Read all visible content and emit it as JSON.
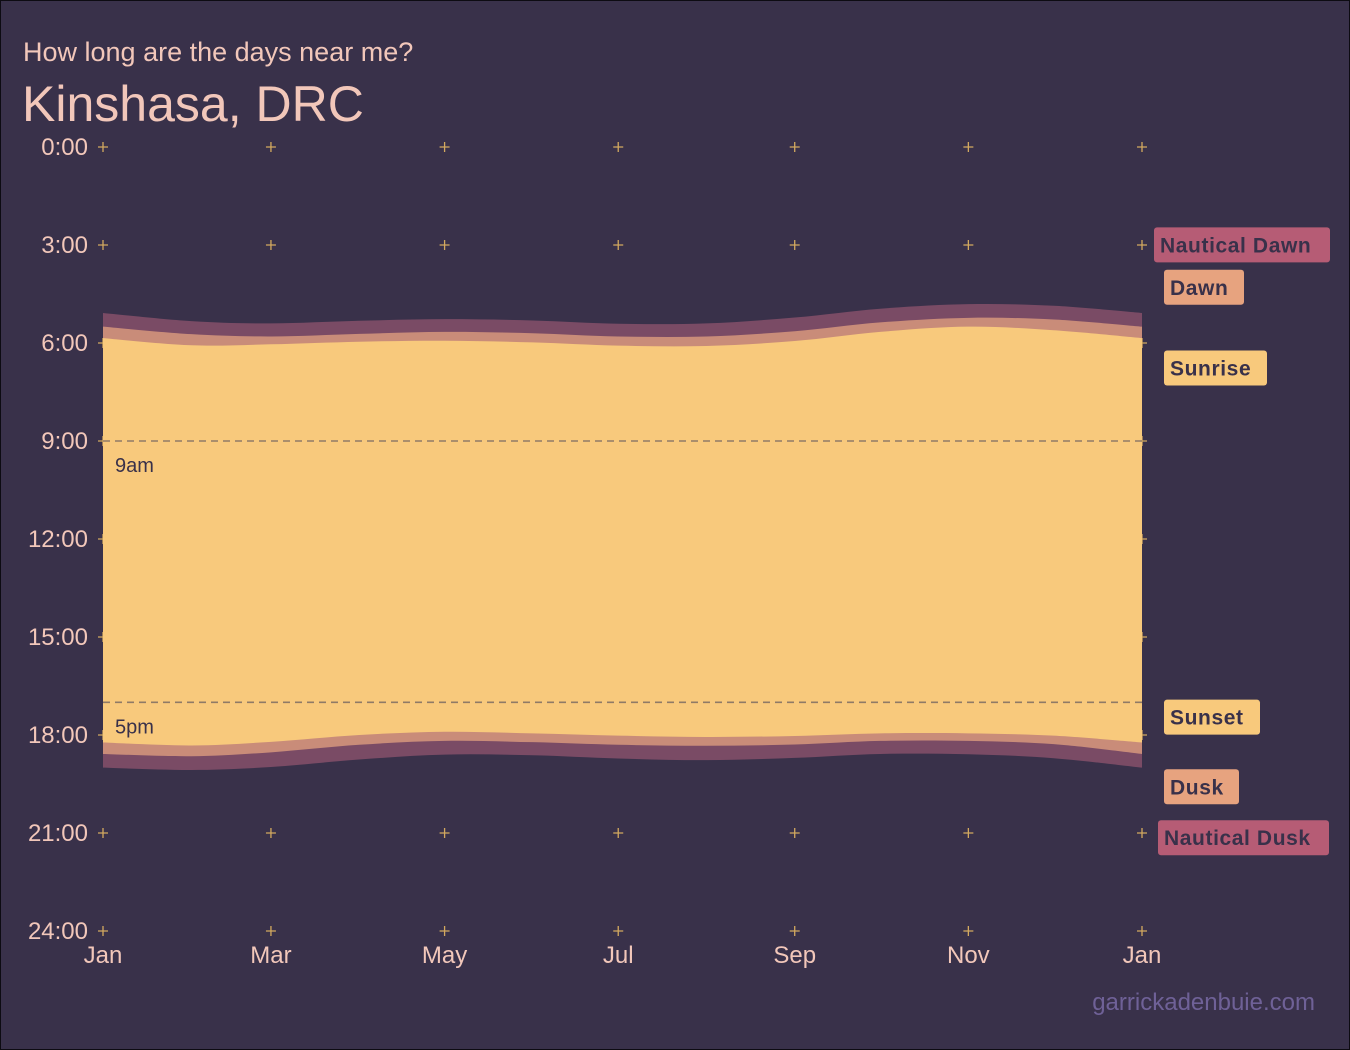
{
  "header": {
    "subtitle": "How long are the days near me?",
    "title": "Kinshasa, DRC"
  },
  "caption": "garrickadenbuie.com",
  "colors": {
    "background": "#39314a",
    "text": "#f2c7ba",
    "grid_marker": "#d3a95f",
    "day": "#f8c97c",
    "civil_twilight": "#c98c79",
    "nautical_twilight": "#7a4b65",
    "reference_line": "#8f7a66",
    "label_dark_text": "#39314a",
    "nautical_label_text": "#39314a",
    "caption": "#6f6197"
  },
  "chart_data": {
    "type": "area",
    "x_axis": {
      "ticks": [
        "Jan",
        "Mar",
        "May",
        "Jul",
        "Sep",
        "Nov",
        "Jan"
      ],
      "range": [
        "2019-01-01",
        "2020-01-01"
      ]
    },
    "y_axis": {
      "ticks": [
        "0:00",
        "3:00",
        "6:00",
        "9:00",
        "12:00",
        "15:00",
        "18:00",
        "21:00",
        "24:00"
      ],
      "range_hours": [
        0,
        24
      ],
      "reversed": true
    },
    "x": [
      "2019-01-01",
      "2019-02-01",
      "2019-03-01",
      "2019-04-01",
      "2019-05-01",
      "2019-06-01",
      "2019-07-01",
      "2019-08-01",
      "2019-09-01",
      "2019-10-01",
      "2019-11-01",
      "2019-12-01",
      "2020-01-01"
    ],
    "series": [
      {
        "name": "Nautical Dawn",
        "values": [
          5.08,
          5.33,
          5.4,
          5.32,
          5.27,
          5.31,
          5.41,
          5.4,
          5.22,
          4.95,
          4.81,
          4.86,
          5.08
        ]
      },
      {
        "name": "Dawn",
        "values": [
          5.5,
          5.73,
          5.8,
          5.72,
          5.66,
          5.7,
          5.8,
          5.8,
          5.64,
          5.37,
          5.23,
          5.28,
          5.5
        ]
      },
      {
        "name": "Sunrise",
        "values": [
          5.85,
          6.07,
          6.04,
          5.96,
          5.93,
          5.98,
          6.08,
          6.09,
          5.94,
          5.66,
          5.5,
          5.61,
          5.85
        ]
      },
      {
        "name": "Sunset",
        "values": [
          18.23,
          18.32,
          18.21,
          18.0,
          17.9,
          17.95,
          18.02,
          18.06,
          18.03,
          17.95,
          17.95,
          18.02,
          18.23
        ]
      },
      {
        "name": "Dusk",
        "values": [
          18.58,
          18.65,
          18.53,
          18.3,
          18.18,
          18.22,
          18.3,
          18.33,
          18.29,
          18.18,
          18.18,
          18.28,
          18.58
        ]
      },
      {
        "name": "Nautical Dusk",
        "values": [
          19.0,
          19.07,
          18.98,
          18.75,
          18.6,
          18.62,
          18.72,
          18.77,
          18.7,
          18.58,
          18.59,
          18.71,
          19.0
        ]
      }
    ],
    "reference_lines": [
      {
        "label": "9am",
        "hour": 9
      },
      {
        "label": "5pm",
        "hour": 17
      }
    ],
    "grid": false,
    "legend": "right"
  }
}
